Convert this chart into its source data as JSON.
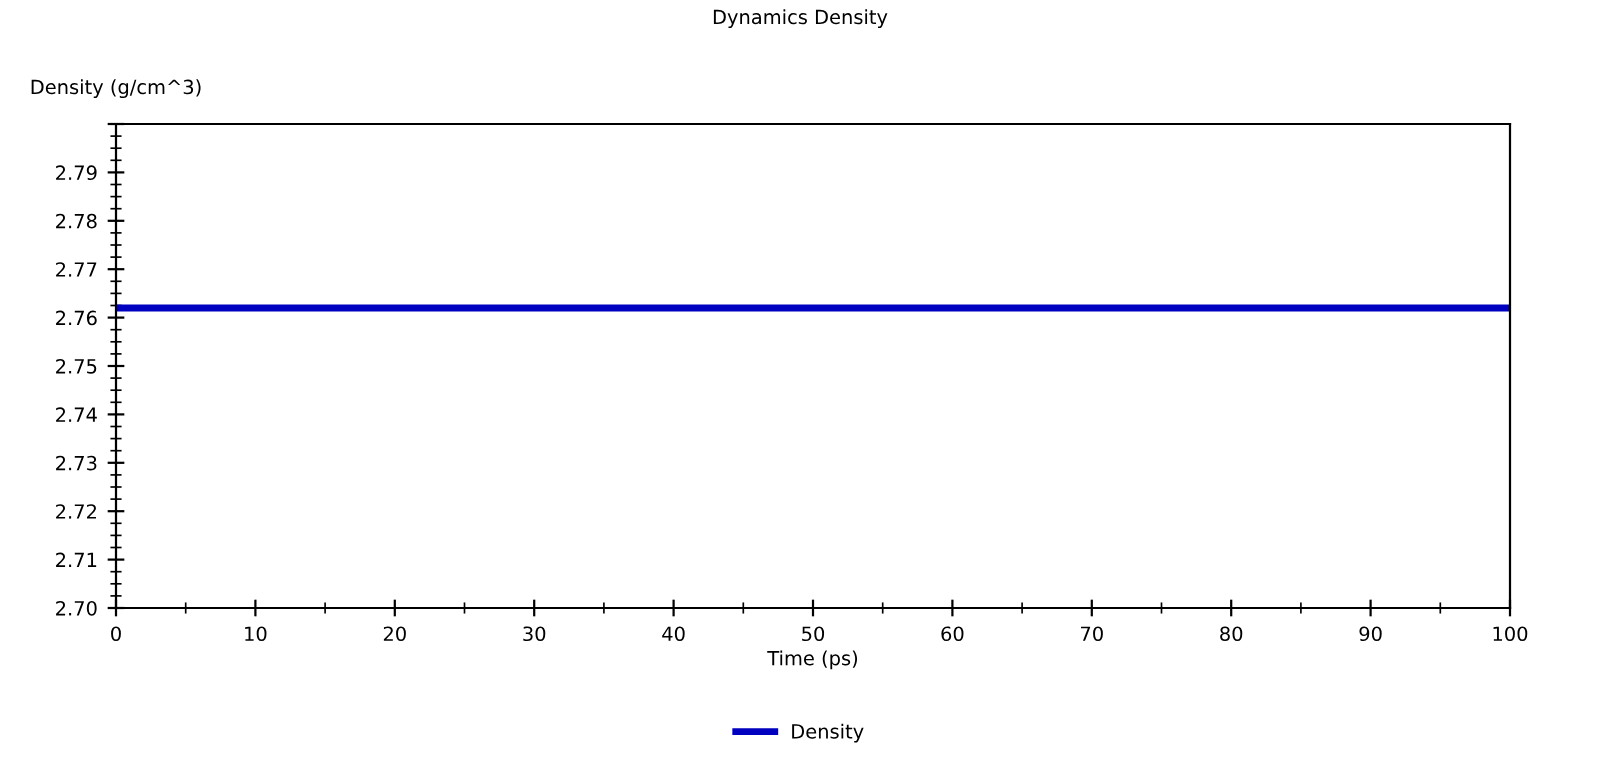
{
  "chart_data": {
    "type": "line",
    "title": "Dynamics Density",
    "xlabel": "Time (ps)",
    "ylabel": "Density (g/cm^3)",
    "x": [
      0,
      100
    ],
    "series": [
      {
        "name": "Density",
        "color": "#0000c0",
        "values": [
          2.762,
          2.762
        ]
      }
    ],
    "xlim": [
      0,
      100
    ],
    "xticks": [
      0,
      10,
      20,
      30,
      40,
      50,
      60,
      70,
      80,
      90,
      100
    ],
    "ylim": [
      2.7,
      2.8
    ],
    "yticks": [
      {
        "value": 2.7,
        "label": "2.70"
      },
      2.71,
      2.72,
      2.73,
      2.74,
      2.75,
      2.76,
      2.77,
      2.78,
      2.79,
      {
        "value": 2.8,
        "label": null
      }
    ],
    "grid": false,
    "legend": "bottom",
    "marker": "none",
    "line_style": "solid"
  }
}
